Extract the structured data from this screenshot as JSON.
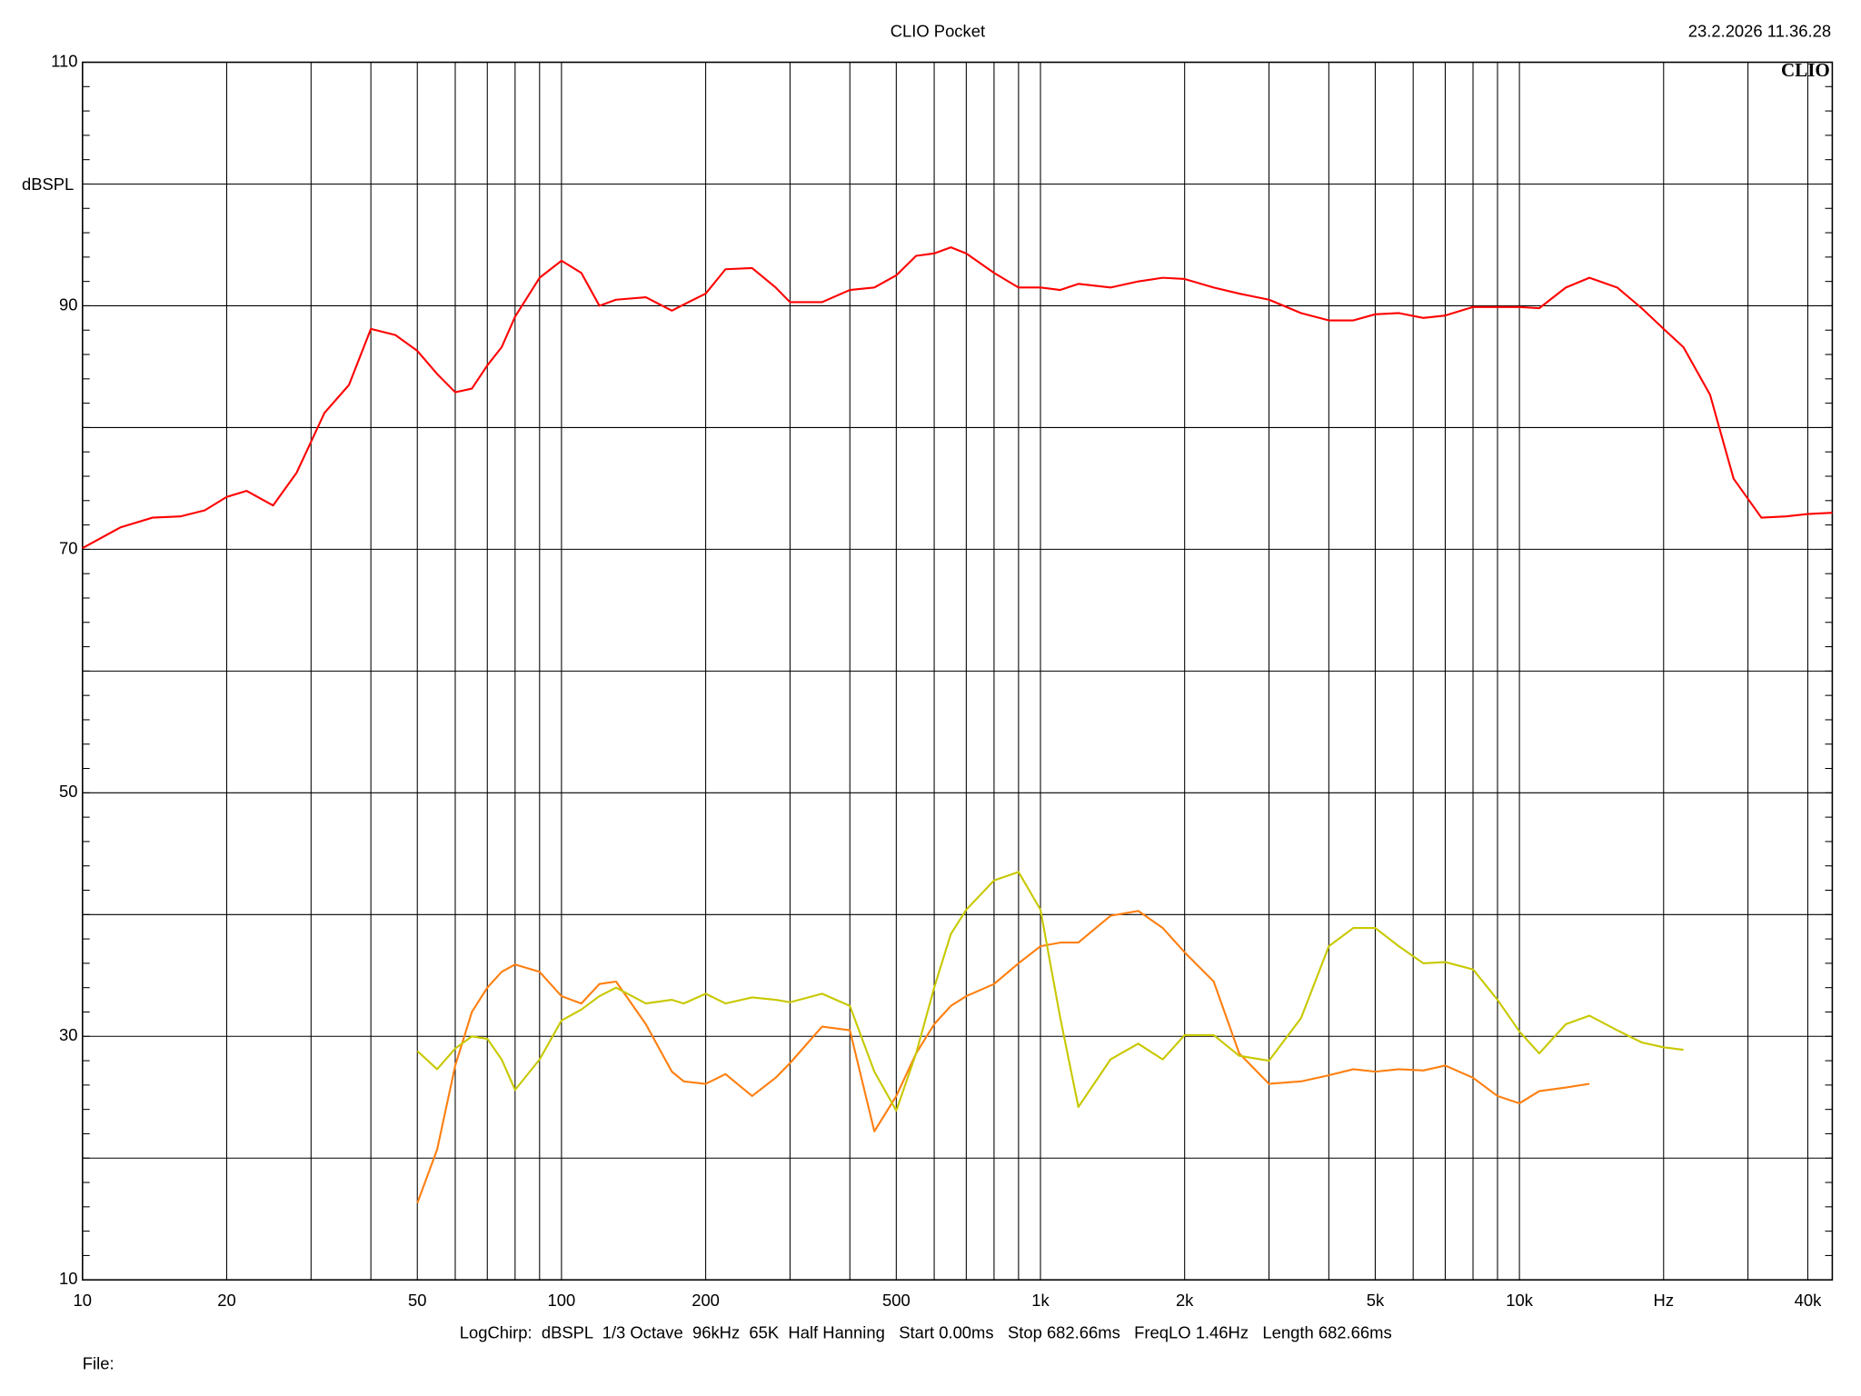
{
  "chart_data": {
    "type": "line",
    "title": "CLIO Pocket",
    "timestamp": "23.2.2026 11.36.28",
    "logo": "CLIO",
    "ylabel": "dBSPL",
    "footer": "LogChirp:  dBSPL  1/3 Octave  96kHz  65K  Half Hanning   Start 0.00ms   Stop 682.66ms   FreqLO 1.46Hz   Length 682.66ms",
    "file_label": "File:",
    "xscale": "log",
    "grid": true,
    "xlim": [
      10,
      45000
    ],
    "ylim": [
      10,
      110
    ],
    "xticks": [
      10,
      20,
      50,
      100,
      200,
      500,
      {
        "value": 1000,
        "label": "1k"
      },
      {
        "value": 2000,
        "label": "2k"
      },
      {
        "value": 5000,
        "label": "5k"
      },
      {
        "value": 10000,
        "label": "10k"
      },
      {
        "value": 20000,
        "label": "Hz"
      },
      {
        "value": 40000,
        "label": "40k"
      }
    ],
    "xgrid": [
      30,
      40,
      60,
      70,
      80,
      90,
      300,
      400,
      600,
      700,
      800,
      900,
      3000,
      4000,
      6000,
      7000,
      8000,
      9000,
      30000
    ],
    "yticks": [
      10,
      30,
      50,
      70,
      90,
      110
    ],
    "ygrid": [
      20,
      40,
      60,
      80,
      100
    ],
    "x": [
      10,
      12,
      14,
      16,
      18,
      20,
      22,
      25,
      28,
      32,
      36,
      40,
      45,
      50,
      55,
      60,
      65,
      70,
      75,
      80,
      90,
      100,
      110,
      120,
      130,
      150,
      170,
      180,
      200,
      220,
      250,
      280,
      300,
      350,
      400,
      450,
      500,
      550,
      600,
      650,
      700,
      800,
      900,
      1000,
      1100,
      1200,
      1400,
      1600,
      1800,
      2000,
      2300,
      2600,
      3000,
      3500,
      4000,
      4500,
      5000,
      5600,
      6300,
      7000,
      8000,
      9000,
      10000,
      11000,
      12500,
      14000,
      16000,
      18000,
      20000,
      22000,
      25000,
      28000,
      32000,
      36000,
      40000,
      45000
    ],
    "series": [
      {
        "color": "#ff0000",
        "values": [
          70.1,
          71.8,
          72.6,
          72.7,
          73.2,
          74.3,
          74.8,
          73.6,
          76.3,
          81.2,
          83.5,
          88.1,
          87.6,
          86.3,
          84.4,
          82.9,
          83.2,
          85.1,
          86.6,
          89.1,
          92.3,
          93.7,
          92.7,
          90.0,
          90.5,
          90.7,
          89.6,
          90.1,
          91.0,
          93.0,
          93.1,
          91.5,
          90.3,
          90.3,
          91.3,
          91.5,
          92.5,
          94.1,
          94.3,
          94.8,
          94.3,
          92.7,
          91.5,
          91.5,
          91.3,
          91.8,
          91.5,
          92.0,
          92.3,
          92.2,
          91.5,
          91.0,
          90.5,
          89.4,
          88.8,
          88.8,
          89.3,
          89.4,
          89.0,
          89.2,
          89.9,
          89.9,
          89.9,
          89.8,
          91.5,
          92.3,
          91.5,
          89.8,
          88.1,
          86.6,
          82.7,
          75.8,
          72.6,
          72.7,
          72.9,
          73.0
        ]
      },
      {
        "color": "#ff7f10",
        "values": [
          null,
          null,
          null,
          null,
          null,
          null,
          null,
          null,
          null,
          null,
          null,
          null,
          null,
          16.3,
          20.7,
          27.6,
          32.0,
          34.0,
          35.3,
          35.9,
          35.3,
          33.3,
          32.7,
          34.3,
          34.5,
          31.0,
          27.1,
          26.3,
          26.1,
          26.9,
          25.1,
          26.6,
          27.8,
          30.8,
          30.5,
          22.2,
          25.1,
          28.6,
          31.0,
          32.5,
          33.3,
          34.3,
          36.0,
          37.4,
          37.7,
          37.7,
          39.9,
          40.3,
          38.9,
          36.9,
          34.5,
          28.6,
          26.1,
          26.3,
          26.8,
          27.3,
          27.1,
          27.3,
          27.2,
          27.6,
          26.6,
          25.1,
          24.5,
          25.5,
          25.8,
          26.1,
          null,
          null,
          null,
          null,
          null,
          null,
          null,
          null,
          null,
          null
        ]
      },
      {
        "color": "#c8c800",
        "values": [
          null,
          null,
          null,
          null,
          null,
          null,
          null,
          null,
          null,
          null,
          null,
          null,
          null,
          28.8,
          27.3,
          29.0,
          30.0,
          29.8,
          28.1,
          25.6,
          28.1,
          31.3,
          32.2,
          33.3,
          34.0,
          32.7,
          33.0,
          32.7,
          33.5,
          32.7,
          33.2,
          33.0,
          32.8,
          33.5,
          32.5,
          27.1,
          23.9,
          28.6,
          34.0,
          38.4,
          40.4,
          42.8,
          43.5,
          40.4,
          31.5,
          24.2,
          28.1,
          29.4,
          28.1,
          30.1,
          30.1,
          28.4,
          28.0,
          31.5,
          37.4,
          38.9,
          38.9,
          37.4,
          36.0,
          36.1,
          35.5,
          33.0,
          30.4,
          28.6,
          31.0,
          31.7,
          30.5,
          29.5,
          29.1,
          28.9,
          null,
          null,
          null,
          null,
          null,
          null
        ]
      }
    ]
  }
}
